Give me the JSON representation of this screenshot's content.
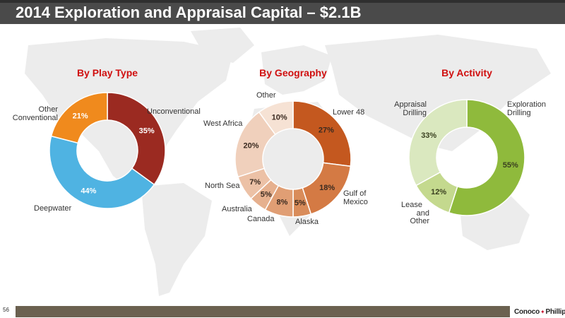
{
  "title": "2014 Exploration and Appraisal Capital – $2.1B",
  "footer": {
    "page_number": "56",
    "logo_text": "ConocoPhillips"
  },
  "colors": {
    "title_bg": "#4a4a4a",
    "chart_title": "#d01010",
    "map": "#ececec",
    "footer_bar": "#6b6150"
  },
  "chart_data": [
    {
      "type": "pie",
      "title": "By Play Type",
      "series": [
        {
          "label": "Unconventional",
          "value": 35,
          "display": "35%",
          "color": "#9b2a21",
          "text_color": "#ffffff"
        },
        {
          "label": "Deepwater",
          "value": 44,
          "display": "44%",
          "color": "#4fb3e2",
          "text_color": "#ffffff"
        },
        {
          "label": "Other Conventional",
          "value": 21,
          "display": "21%",
          "color": "#f08a1d",
          "text_color": "#ffffff"
        }
      ]
    },
    {
      "type": "pie",
      "title": "By Geography",
      "series": [
        {
          "label": "Lower 48",
          "value": 27,
          "display": "27%",
          "color": "#c4581f",
          "text_color": "#3a2a20"
        },
        {
          "label": "Gulf of Mexico",
          "value": 18,
          "display": "18%",
          "color": "#d47a44",
          "text_color": "#3a2a20"
        },
        {
          "label": "Alaska",
          "value": 5,
          "display": "5%",
          "color": "#d98c5a",
          "text_color": "#3a2a20"
        },
        {
          "label": "Canada",
          "value": 8,
          "display": "8%",
          "color": "#e09e74",
          "text_color": "#3a2a20"
        },
        {
          "label": "Australia",
          "value": 5,
          "display": "5%",
          "color": "#e6b08e",
          "text_color": "#3a2a20"
        },
        {
          "label": "North Sea",
          "value": 7,
          "display": "7%",
          "color": "#ecc1a6",
          "text_color": "#3a2a20"
        },
        {
          "label": "West Africa",
          "value": 20,
          "display": "20%",
          "color": "#f0d0bc",
          "text_color": "#3a2a20"
        },
        {
          "label": "Other",
          "value": 10,
          "display": "10%",
          "color": "#f6e2d4",
          "text_color": "#3a2a20"
        }
      ]
    },
    {
      "type": "pie",
      "title": "By Activity",
      "series": [
        {
          "label": "Exploration Drilling",
          "value": 55,
          "display": "55%",
          "color": "#8fba3c",
          "text_color": "#3a4020"
        },
        {
          "label": "Lease and Other",
          "value": 12,
          "display": "12%",
          "color": "#c4d98e",
          "text_color": "#3a4020"
        },
        {
          "label": "Appraisal Drilling",
          "value": 33,
          "display": "33%",
          "color": "#dae8bf",
          "text_color": "#3a4020"
        }
      ]
    }
  ]
}
